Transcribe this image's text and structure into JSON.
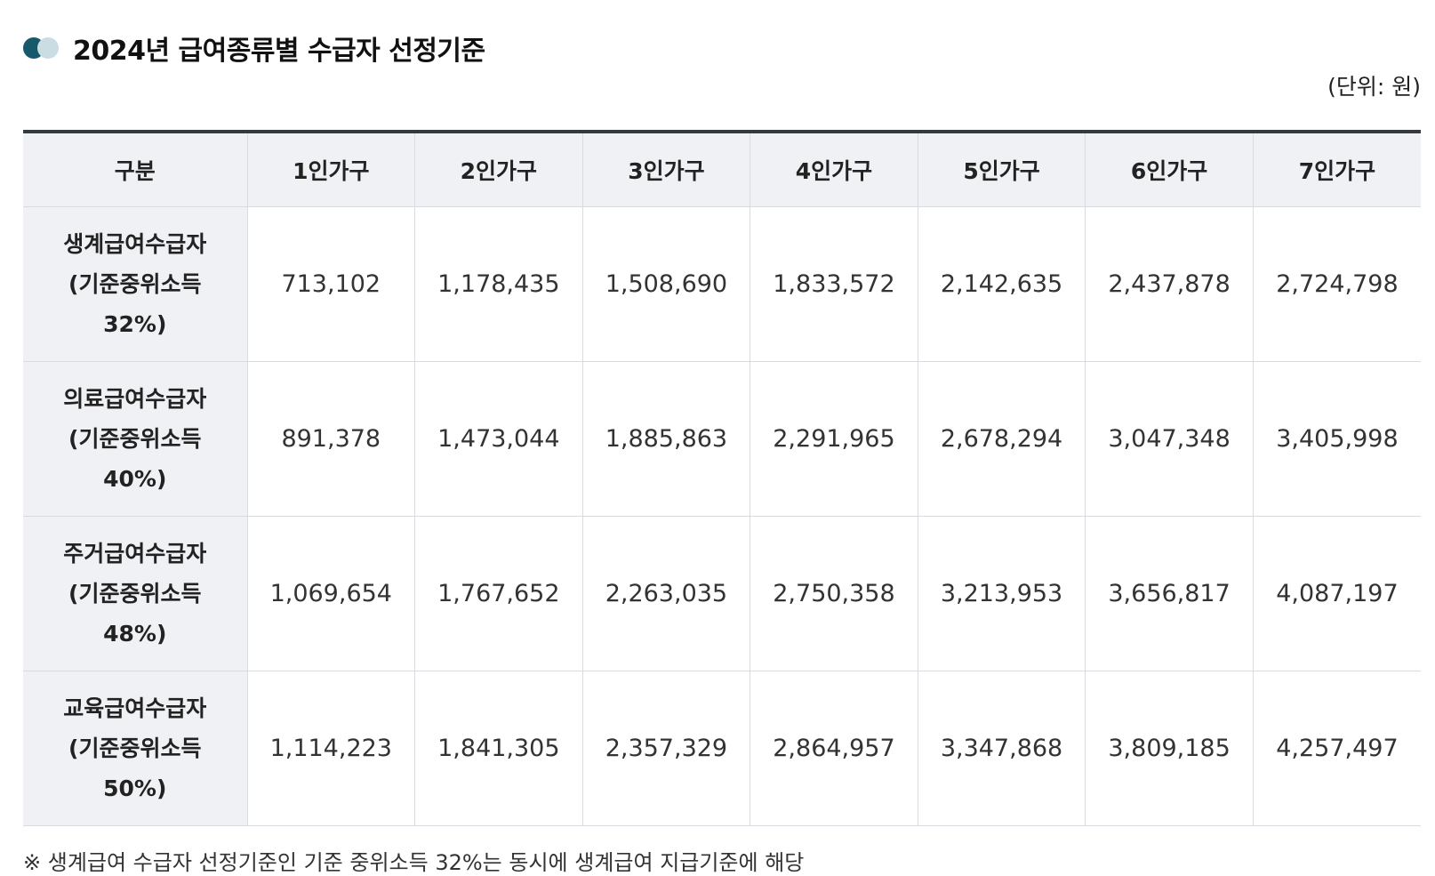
{
  "section": {
    "title": "2024년 급여종류별 수급자 선정기준",
    "unit": "(단위: 원)"
  },
  "table": {
    "headers": [
      "구분",
      "1인가구",
      "2인가구",
      "3인가구",
      "4인가구",
      "5인가구",
      "6인가구",
      "7인가구"
    ],
    "rows": [
      {
        "label": [
          "생계급여수급자",
          "(기준중위소득",
          "32%)"
        ],
        "values": [
          "713,102",
          "1,178,435",
          "1,508,690",
          "1,833,572",
          "2,142,635",
          "2,437,878",
          "2,724,798"
        ]
      },
      {
        "label": [
          "의료급여수급자",
          "(기준중위소득",
          "40%)"
        ],
        "values": [
          "891,378",
          "1,473,044",
          "1,885,863",
          "2,291,965",
          "2,678,294",
          "3,047,348",
          "3,405,998"
        ]
      },
      {
        "label": [
          "주거급여수급자",
          "(기준중위소득",
          "48%)"
        ],
        "values": [
          "1,069,654",
          "1,767,652",
          "2,263,035",
          "2,750,358",
          "3,213,953",
          "3,656,817",
          "4,087,197"
        ]
      },
      {
        "label": [
          "교육급여수급자",
          "(기준중위소득",
          "50%)"
        ],
        "values": [
          "1,114,223",
          "1,841,305",
          "2,357,329",
          "2,864,957",
          "3,347,868",
          "3,809,185",
          "4,257,497"
        ]
      }
    ]
  },
  "footnote": "※ 생계급여 수급자 선정기준인 기준 중위소득 32%는 동시에 생계급여 지급기준에 해당"
}
